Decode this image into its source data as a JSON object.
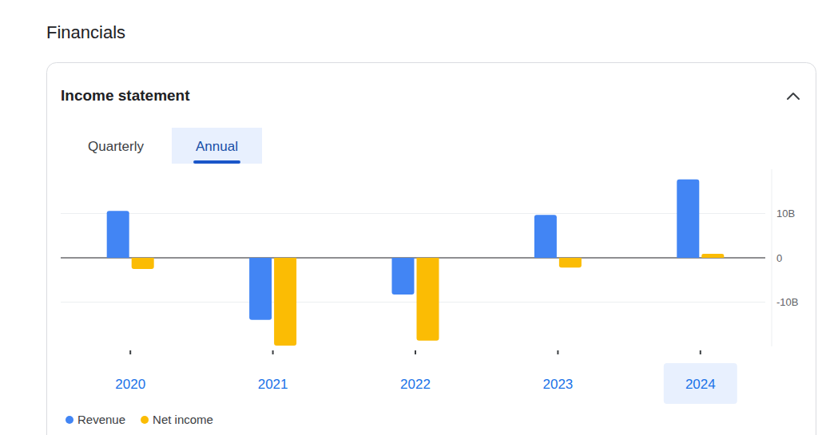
{
  "page": {
    "heading": "Financials",
    "tabs": [
      "Quarterly",
      "Annual"
    ],
    "active_tab": 1
  },
  "chart_data": {
    "type": "bar",
    "title": "Income statement",
    "categories": [
      "2020",
      "2021",
      "2022",
      "2023",
      "2024"
    ],
    "series": [
      {
        "name": "Revenue",
        "color": "#4285f4",
        "values": [
          10.6,
          -14.0,
          -8.3,
          9.7,
          17.7
        ]
      },
      {
        "name": "Net income",
        "color": "#fbbc04",
        "values": [
          -2.5,
          -19.8,
          -18.7,
          -2.2,
          0.9
        ]
      }
    ],
    "ylim": [
      -20,
      20
    ],
    "yticks": [
      {
        "value": -10,
        "label": "-10B"
      },
      0,
      {
        "value": 10,
        "label": "10B"
      }
    ],
    "grid": true,
    "legend": "bottom"
  }
}
